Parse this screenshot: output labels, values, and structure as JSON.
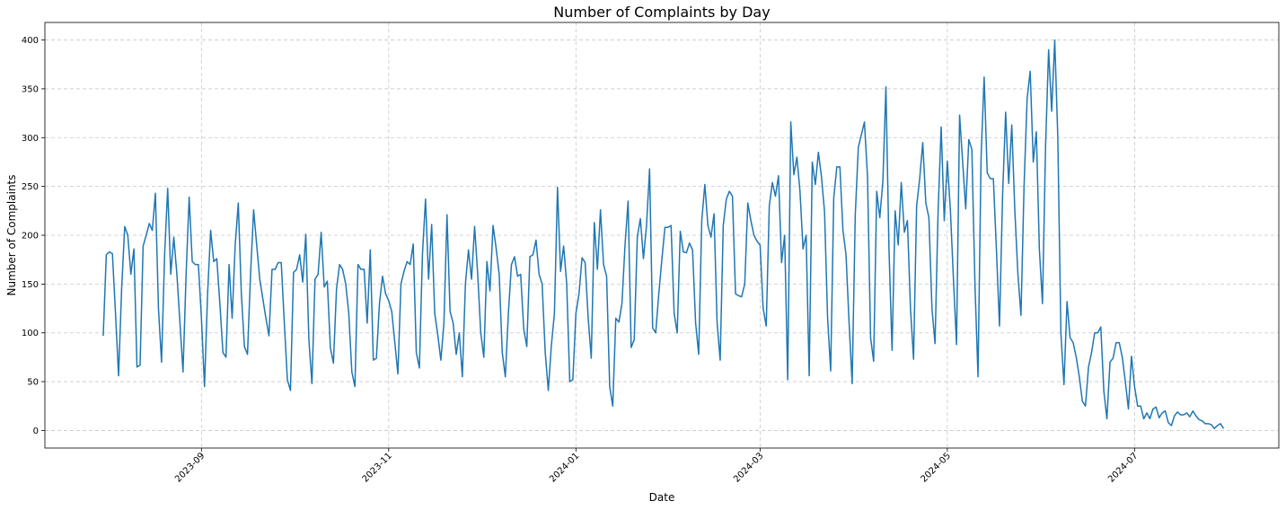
{
  "chart_data": {
    "type": "line",
    "title": "Number of Complaints by Day",
    "xlabel": "Date",
    "ylabel": "Number of Complaints",
    "x_range": [
      "2023-07-12",
      "2024-08-17"
    ],
    "ylim": [
      -18,
      418
    ],
    "y_ticks": [
      0,
      50,
      100,
      150,
      200,
      250,
      300,
      350,
      400
    ],
    "x_ticks": [
      {
        "date": "2023-09-01",
        "label": "2023-09"
      },
      {
        "date": "2023-11-01",
        "label": "2023-11"
      },
      {
        "date": "2024-01-01",
        "label": "2024-01"
      },
      {
        "date": "2024-03-01",
        "label": "2024-03"
      },
      {
        "date": "2024-05-01",
        "label": "2024-05"
      },
      {
        "date": "2024-07-01",
        "label": "2024-07"
      }
    ],
    "grid": true,
    "color": "#1f77b4",
    "series": [
      {
        "start_date": "2023-07-31",
        "values": [
          97,
          180,
          183,
          181,
          120,
          56,
          145,
          209,
          200,
          160,
          186,
          65,
          67,
          189,
          200,
          212,
          205,
          243,
          125,
          70,
          180,
          248,
          160,
          198,
          160,
          110,
          60,
          160,
          239,
          173,
          170,
          170,
          115,
          45,
          140,
          205,
          173,
          176,
          130,
          80,
          75,
          170,
          115,
          190,
          233,
          140,
          86,
          78,
          160,
          226,
          190,
          155,
          135,
          115,
          97,
          165,
          165,
          172,
          172,
          110,
          52,
          41,
          162,
          165,
          180,
          152,
          201,
          93,
          48,
          155,
          160,
          203,
          147,
          153,
          85,
          69,
          145,
          170,
          165,
          150,
          120,
          60,
          45,
          170,
          165,
          165,
          110,
          185,
          72,
          74,
          130,
          158,
          140,
          133,
          122,
          90,
          58,
          150,
          163,
          173,
          170,
          191,
          80,
          64,
          180,
          237,
          155,
          211,
          120,
          98,
          72,
          110,
          221,
          122,
          110,
          78,
          100,
          55,
          150,
          185,
          155,
          209,
          160,
          100,
          75,
          173,
          143,
          210,
          187,
          160,
          80,
          55,
          120,
          170,
          178,
          158,
          160,
          104,
          86,
          178,
          180,
          195,
          160,
          150,
          80,
          41,
          87,
          120,
          249,
          163,
          189,
          150,
          50,
          52,
          120,
          140,
          177,
          172,
          115,
          74,
          213,
          165,
          226,
          170,
          158,
          45,
          25,
          115,
          111,
          130,
          190,
          235,
          85,
          93,
          198,
          217,
          176,
          210,
          268,
          105,
          100,
          140,
          175,
          208,
          208,
          210,
          120,
          100,
          204,
          183,
          182,
          192,
          185,
          110,
          78,
          215,
          252,
          210,
          198,
          222,
          110,
          72,
          210,
          237,
          245,
          240,
          140,
          138,
          137,
          150,
          233,
          215,
          200,
          194,
          190,
          125,
          107,
          230,
          254,
          240,
          261,
          172,
          200,
          52,
          316,
          262,
          280,
          245,
          186,
          200,
          56,
          275,
          252,
          285,
          260,
          224,
          115,
          61,
          238,
          270,
          270,
          205,
          180,
          110,
          48,
          220,
          290,
          303,
          316,
          260,
          95,
          71,
          245,
          218,
          255,
          352,
          185,
          82,
          225,
          190,
          254,
          203,
          215,
          125,
          73,
          230,
          258,
          295,
          233,
          218,
          125,
          89,
          225,
          311,
          215,
          276,
          226,
          155,
          88,
          323,
          275,
          227,
          298,
          288,
          150,
          55,
          280,
          362,
          264,
          258,
          258,
          185,
          107,
          240,
          326,
          253,
          313,
          225,
          160,
          118,
          250,
          340,
          368,
          275,
          306,
          185,
          130,
          290,
          390,
          327,
          400,
          300,
          100,
          47,
          132,
          95,
          90,
          75,
          55,
          30,
          25,
          65,
          80,
          100,
          100,
          106,
          40,
          12,
          70,
          74,
          90,
          90,
          75,
          50,
          22,
          76,
          45,
          25,
          25,
          12,
          18,
          12,
          22,
          24,
          13,
          18,
          20,
          8,
          5,
          15,
          19,
          16,
          16,
          18,
          14,
          20,
          15,
          11,
          10,
          7,
          7,
          6,
          2,
          5,
          7,
          2
        ]
      }
    ]
  }
}
